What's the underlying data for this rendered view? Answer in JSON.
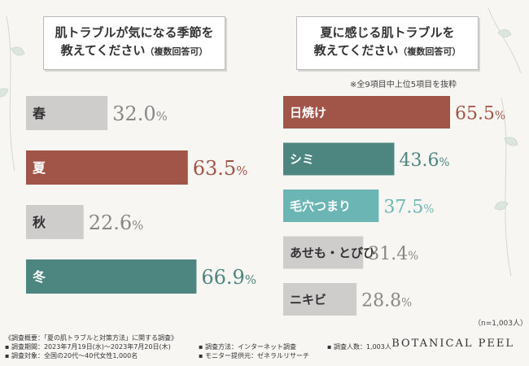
{
  "colors": {
    "season_grey": "#cfcdcc",
    "summer": "#a05548",
    "winter": "#4d8580",
    "teal_light": "#6bb6b5",
    "grey_bar": "#cfcdcc"
  },
  "left_title": {
    "line1": "肌トラブルが気になる季節を",
    "line2": "教えてください",
    "line2_small": "（複数回答可）"
  },
  "right_title": {
    "line1": "夏に感じる肌トラブルを",
    "line2": "教えてください",
    "line2_small": "（複数回答可）"
  },
  "right_note": "※全9項目中上位5項目を抜粋",
  "n_note": "（n=1,003人）",
  "chart_data": [
    {
      "type": "bar",
      "orientation": "horizontal",
      "title": "肌トラブルが気になる季節を教えてください（複数回答可）",
      "categories": [
        "春",
        "夏",
        "秋",
        "冬"
      ],
      "values": [
        32.0,
        63.5,
        22.6,
        66.9
      ],
      "value_labels": [
        {
          "int": "32.",
          "dec": "0",
          "unit": "%"
        },
        {
          "int": "63.",
          "dec": "5",
          "unit": "%"
        },
        {
          "int": "22.",
          "dec": "6",
          "unit": "%"
        },
        {
          "int": "66.",
          "dec": "9",
          "unit": "%"
        }
      ],
      "bar_colors": [
        "#cfcdcc",
        "#a05548",
        "#cfcdcc",
        "#4d8580"
      ],
      "label_colors": [
        "#333333",
        "#ffffff",
        "#333333",
        "#ffffff"
      ],
      "value_colors": [
        "#888888",
        "#a05548",
        "#888888",
        "#4d8580"
      ],
      "xlim": [
        0,
        100
      ]
    },
    {
      "type": "bar",
      "orientation": "horizontal",
      "title": "夏に感じる肌トラブルを教えてください（複数回答可）",
      "categories": [
        "日焼け",
        "シミ",
        "毛穴つまり",
        "あせも・とびひ",
        "ニキビ"
      ],
      "values": [
        65.5,
        43.6,
        37.5,
        31.4,
        28.8
      ],
      "value_labels": [
        {
          "int": "65.",
          "dec": "5",
          "unit": "%"
        },
        {
          "int": "43.",
          "dec": "6",
          "unit": "%"
        },
        {
          "int": "37.",
          "dec": "5",
          "unit": "%"
        },
        {
          "int": "31.",
          "dec": "4",
          "unit": "%"
        },
        {
          "int": "28.",
          "dec": "8",
          "unit": "%"
        }
      ],
      "bar_colors": [
        "#a05548",
        "#4d8580",
        "#6bb6b5",
        "#cfcdcc",
        "#cfcdcc"
      ],
      "label_colors": [
        "#ffffff",
        "#ffffff",
        "#ffffff",
        "#333333",
        "#333333"
      ],
      "value_colors": [
        "#a05548",
        "#4d8580",
        "#6bb6b5",
        "#888888",
        "#888888"
      ],
      "xlim": [
        0,
        100
      ]
    }
  ],
  "footer": {
    "col1": [
      "《調査概要：「夏の肌トラブルと対策方法」に関する調査》",
      "▪ 調査期間：2023年7月19日(水)～2023年7月20日(木)",
      "▪ 調査対象：全国の20代～40代女性1,000名"
    ],
    "col2": [
      "▪ 調査方法：インターネット調査",
      "▪ モニター提供元：ゼネラルリサーチ"
    ],
    "col3": [
      "▪ 調査人数：1,003人"
    ]
  },
  "brand": "BOTANICAL PEEL"
}
